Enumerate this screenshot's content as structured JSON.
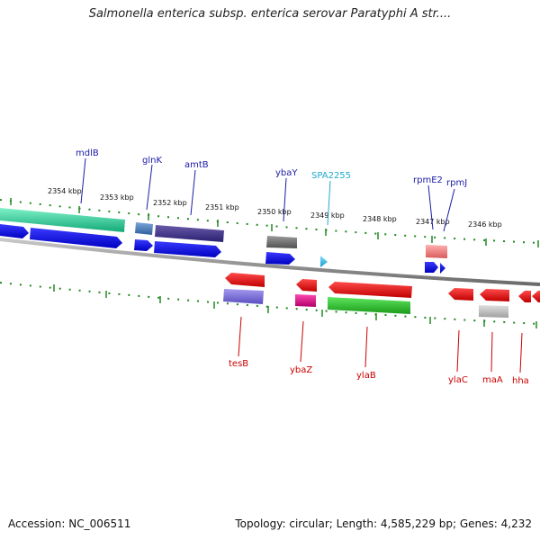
{
  "title": "Salmonella enterica subsp. enterica serovar Paratyphi A str....",
  "footer": {
    "accession": "Accession: NC_006511",
    "summary": "Topology: circular; Length: 4,585,229 bp; Genes: 4,232"
  },
  "colors": {
    "forward_label": "#1a1aa6",
    "reverse_label": "#cc0000",
    "highlight_label": "#22aacc",
    "backbone": "#8a8a8a",
    "tick": "#228822"
  },
  "ticks": [
    "2354 kbp",
    "2353 kbp",
    "2352 kbp",
    "2351 kbp",
    "2350 kbp",
    "2349 kbp",
    "2348 kbp",
    "2347 kbp",
    "2346 kbp"
  ],
  "forward_labels": [
    "mdlB",
    "glnK",
    "amtB",
    "ybaY",
    "SPA2255",
    "rpmE2",
    "rpmJ"
  ],
  "reverse_labels": [
    "tesB",
    "ybaZ",
    "ylaB",
    "ylaC",
    "maA",
    "hha"
  ]
}
